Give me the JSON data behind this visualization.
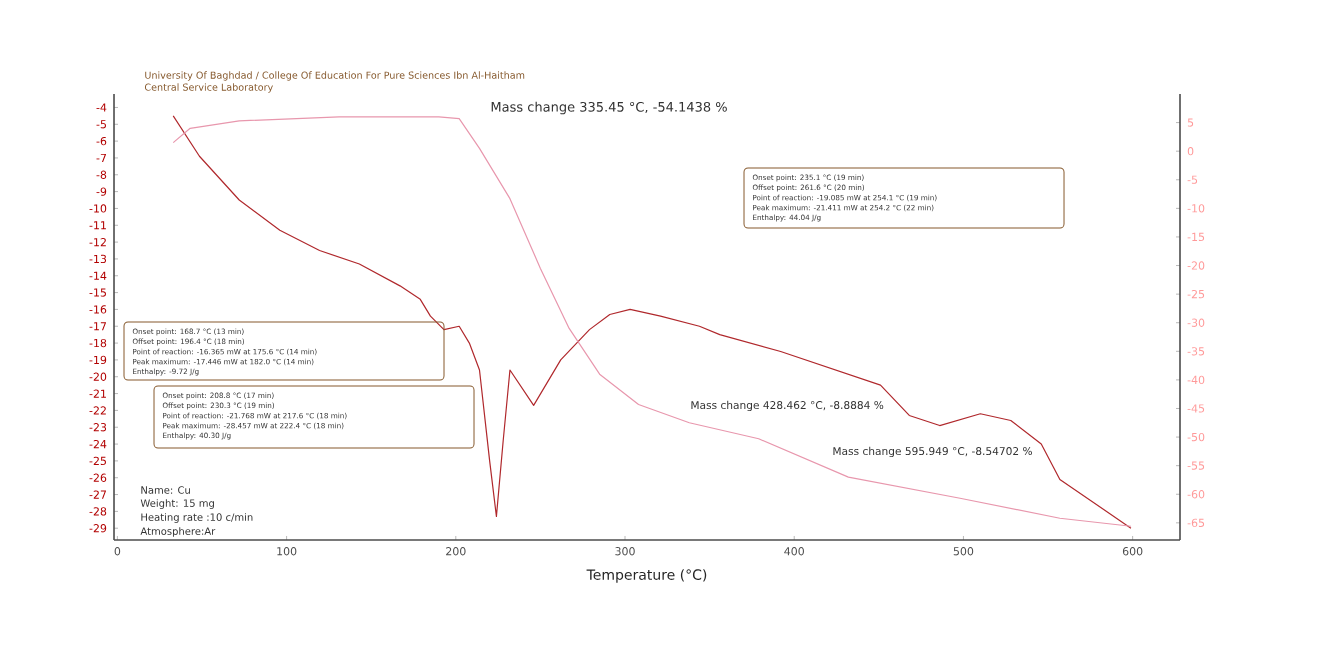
{
  "chart_data": {
    "type": "line",
    "title": "University Of Baghdad / College Of Education For Pure Sciences Ibn Al-Haitham",
    "subtitle": "Central Service Laboratory",
    "xlabel": "Temperature (°C)",
    "xlim": [
      -2,
      628
    ],
    "xticks": [
      0,
      100,
      200,
      300,
      400,
      500,
      600
    ],
    "ylim": [
      -29.7,
      -3.2
    ],
    "yticks": [
      -4,
      -5,
      -6,
      -7,
      -8,
      -9,
      -10,
      -11,
      -12,
      -13,
      -14,
      -15,
      -16,
      -17,
      -18,
      -19,
      -20,
      -21,
      -22,
      -23,
      -24,
      -25,
      -26,
      -27,
      -28,
      -29
    ],
    "y2lim": [
      -68,
      10
    ],
    "y2ticks": [
      5,
      0,
      -5,
      -10,
      -15,
      -20,
      -25,
      -30,
      -35,
      -40,
      -45,
      -50,
      -55,
      -60,
      -65
    ],
    "series": [
      {
        "color": "#b0282c",
        "x": [
          33,
          48.5,
          72,
          96,
          119.5,
          143,
          167,
          179,
          185,
          193,
          202,
          208,
          214,
          220,
          224,
          228,
          232,
          246,
          262,
          279,
          291,
          303,
          321,
          344,
          356,
          392,
          451,
          468,
          486,
          510,
          528,
          546,
          557,
          599
        ],
        "values": [
          -4.5,
          -6.9,
          -9.5,
          -11.3,
          -12.5,
          -13.3,
          -14.6,
          -15.4,
          -16.4,
          -17.2,
          -17,
          -18,
          -19.6,
          -25,
          -28.3,
          -23.8,
          -19.6,
          -21.7,
          -19,
          -17.2,
          -16.3,
          -16,
          -16.4,
          -17,
          -17.5,
          -18.5,
          -20.5,
          -22.3,
          -22.9,
          -22.2,
          -22.6,
          -24,
          -26.1,
          -29
        ]
      },
      {
        "color": "#e897ad",
        "axis": "y2",
        "x": [
          33,
          43,
          72,
          131,
          190,
          202,
          214,
          232,
          250,
          267,
          285,
          308,
          338,
          379,
          432,
          498,
          557,
          599
        ],
        "values": [
          1.5,
          4,
          5.3,
          6,
          6,
          5.7,
          0.5,
          -8.3,
          -20.5,
          -31,
          -39,
          -44.3,
          -47.5,
          -50.3,
          -57,
          -60.7,
          -64.2,
          -65.6
        ]
      }
    ],
    "annotations": [
      "Mass change 335.45 °C,  -54.1438 %",
      "Mass change 428.462 °C,  -8.8884 %",
      "Mass change 595.949 °C,  -8.54702 %",
      "Onset point:        168.7 °C (13 min)",
      "Offset point:       196.4 °C (18 min)",
      "Point of reaction:  -16.365 mW at 175.6 °C (14 min)",
      "Peak maximum:       -17.446 mW at 182.0 °C (14 min)",
      "Enthalpy:           -9.72 J/g",
      "Onset point:        208.8 °C (17 min)",
      "Offset point:       230.3 °C (19 min)",
      "Point of reaction:  -21.768 mW at 217.6 °C (18 min)",
      "Peak maximum:       -28.457 mW at 222.4 °C (18 min)",
      "Enthalpy:           40.30 J/g",
      "Onset point:        235.1 °C (19 min)",
      "Offset point:       261.6 °C (20 min)",
      "Point of reaction:  -19.085 mW at 254.1 °C (19 min)",
      "Peak maximum:       -21.411 mW at 254.2 °C (22 min)",
      "Enthalpy:           44.04 J/g",
      "Name: Cu",
      "Weight: 15 mg",
      "Heating rate :10 c/min",
      "Atmosphere:Ar"
    ]
  }
}
